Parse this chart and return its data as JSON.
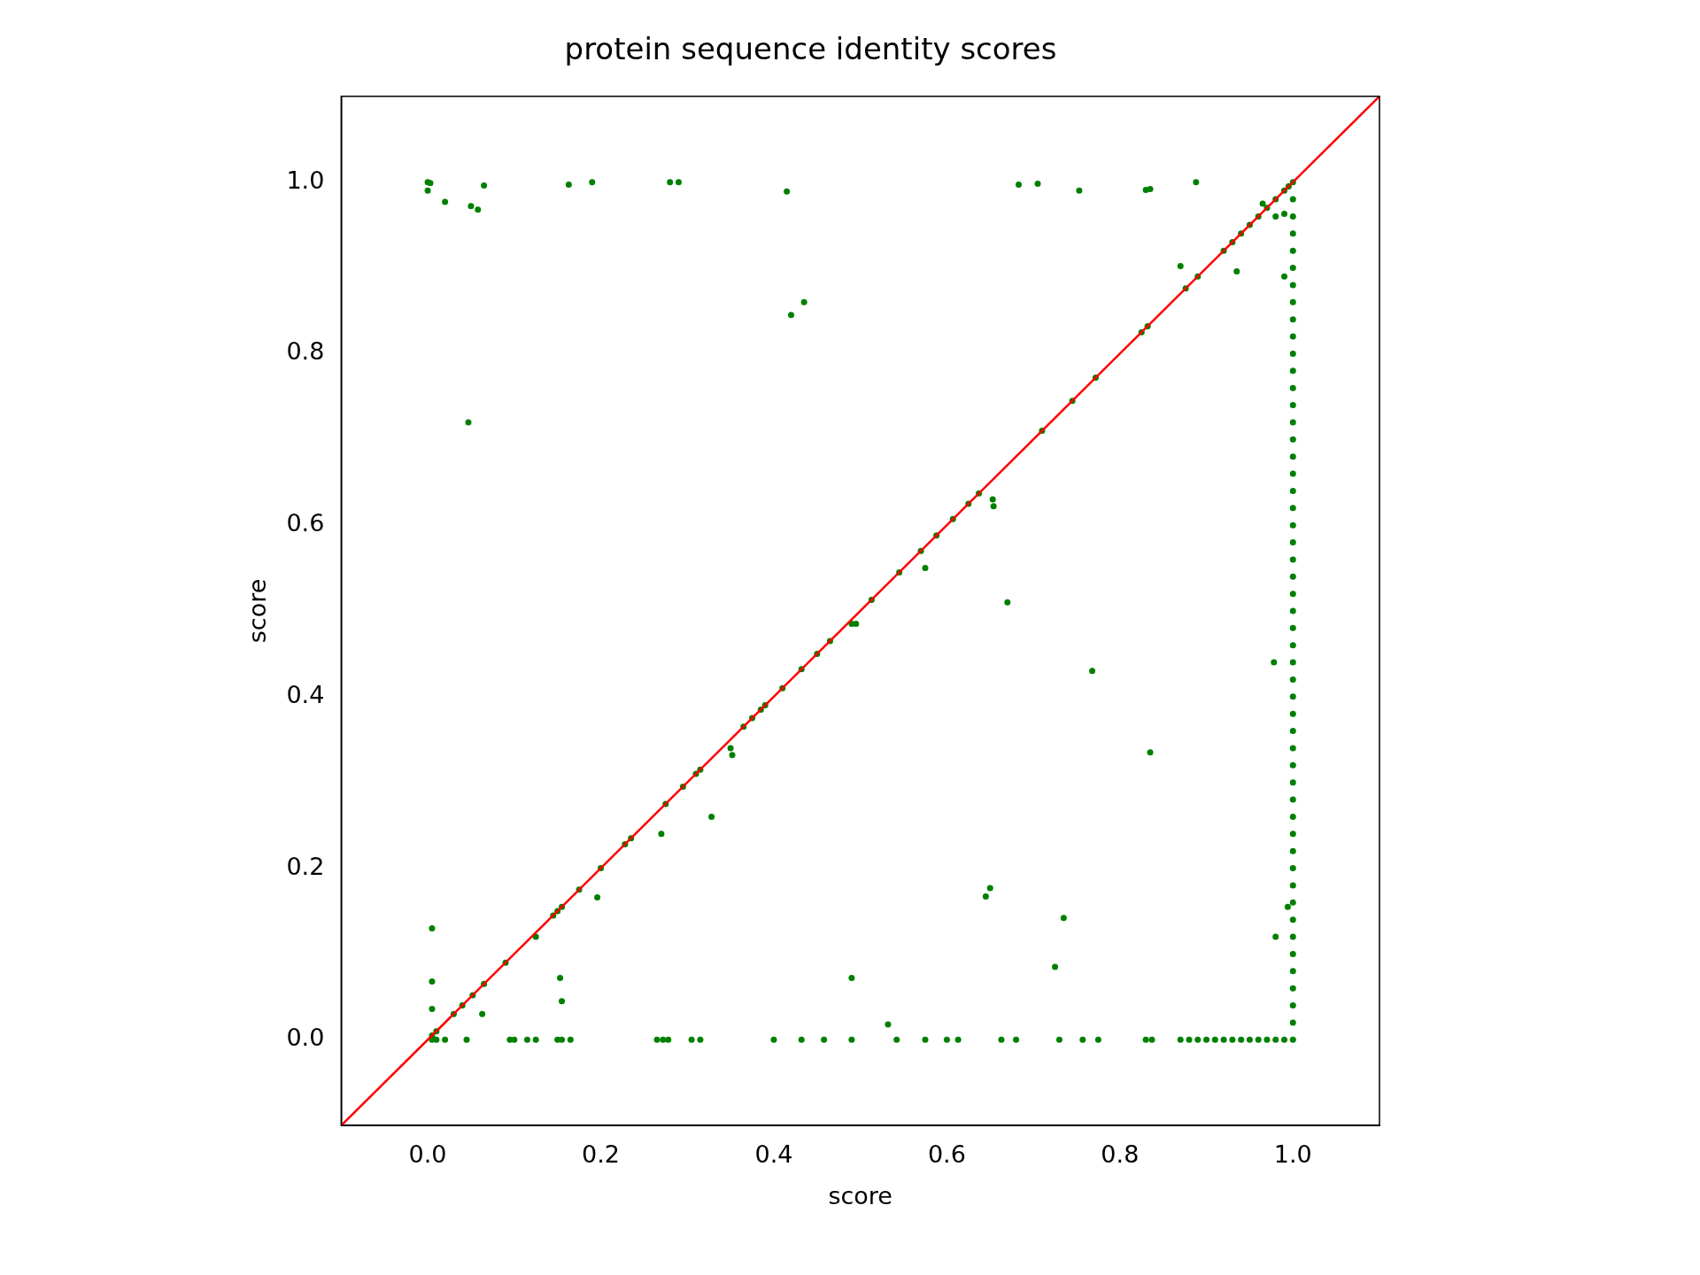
{
  "chart_data": {
    "type": "scatter",
    "title": "protein sequence identity scores",
    "xlabel": "score",
    "ylabel": "score",
    "xlim": [
      -0.1,
      1.1
    ],
    "ylim": [
      -0.1,
      1.1
    ],
    "xticks": [
      {
        "value": 0,
        "label": "0.0"
      },
      {
        "value": 0.2,
        "label": "0.2"
      },
      {
        "value": 0.4,
        "label": "0.4"
      },
      {
        "value": 0.6,
        "label": "0.6"
      },
      {
        "value": 0.8,
        "label": "0.8"
      },
      {
        "value": 1,
        "label": "1.0"
      }
    ],
    "yticks": [
      {
        "value": 0,
        "label": "0.0"
      },
      {
        "value": 0.2,
        "label": "0.2"
      },
      {
        "value": 0.4,
        "label": "0.4"
      },
      {
        "value": 0.6,
        "label": "0.6"
      },
      {
        "value": 0.8,
        "label": "0.8"
      },
      {
        "value": 1,
        "label": "1.0"
      }
    ],
    "grid": false,
    "legend": false,
    "series": [
      {
        "color": "#008000",
        "marker": "circle",
        "x": [
          0,
          0.003,
          0,
          0.02,
          0.05,
          0.058,
          0.065,
          0.163,
          0.19,
          0.28,
          0.29,
          0.415,
          0.683,
          0.705,
          0.753,
          0.83,
          0.835,
          0.888,
          0.87,
          0.935,
          0.42,
          0.435,
          0.047,
          0.653,
          0.654,
          0.67,
          0.575,
          0.768,
          0.835,
          0.978,
          0.328,
          0.27,
          0.196,
          0.65,
          0.645,
          0.735,
          0.725,
          0.98,
          0.994,
          0.49,
          0.532,
          0.153,
          0.155,
          0.005,
          0.005,
          0.005,
          0.063,
          0.99,
          0.98,
          0.99,
          0.965,
          0.005,
          0.01,
          0.03,
          0.04,
          0.052,
          0.065,
          0.09,
          0.125,
          0.145,
          0.15,
          0.155,
          0.175,
          0.2,
          0.228,
          0.235,
          0.275,
          0.295,
          0.31,
          0.315,
          0.35,
          0.352,
          0.365,
          0.375,
          0.385,
          0.39,
          0.41,
          0.432,
          0.45,
          0.465,
          0.49,
          0.495,
          0.513,
          0.545,
          0.57,
          0.588,
          0.607,
          0.625,
          0.637,
          0.71,
          0.745,
          0.772,
          0.825,
          0.832,
          0.876,
          0.89,
          0.92,
          0.93,
          0.94,
          0.95,
          0.96,
          0.97,
          0.98,
          0.99,
          0.995,
          0.005,
          0.01,
          0.02,
          0.045,
          0.095,
          0.1,
          0.115,
          0.125,
          0.15,
          0.155,
          0.165,
          0.265,
          0.272,
          0.278,
          0.305,
          0.315,
          0.4,
          0.432,
          0.458,
          0.49,
          0.542,
          0.575,
          0.6,
          0.613,
          0.663,
          0.68,
          0.73,
          0.757,
          0.775,
          0.83,
          0.837,
          0.87,
          0.88,
          0.89,
          0.9,
          0.91,
          0.92,
          0.93,
          0.94,
          0.95,
          0.96,
          0.97,
          0.98,
          0.99,
          1,
          1,
          1,
          1,
          1,
          1,
          1,
          1,
          1,
          1,
          1,
          1,
          1,
          1,
          1,
          1,
          1,
          1,
          1,
          1,
          1,
          1,
          1,
          1,
          1,
          1,
          1,
          1,
          1,
          1,
          1,
          1,
          1,
          1,
          1,
          1,
          1,
          1,
          1,
          1,
          1,
          1,
          1,
          1,
          1,
          1,
          1,
          1,
          1,
          1,
          1
        ],
        "values": [
          1,
          0.999,
          0.99,
          0.977,
          0.972,
          0.968,
          0.996,
          0.997,
          1,
          1,
          1,
          0.989,
          0.997,
          0.998,
          0.99,
          0.991,
          0.992,
          1,
          0.902,
          0.896,
          0.845,
          0.86,
          0.72,
          0.63,
          0.622,
          0.51,
          0.55,
          0.43,
          0.335,
          0.44,
          0.26,
          0.24,
          0.166,
          0.177,
          0.167,
          0.142,
          0.085,
          0.12,
          0.155,
          0.072,
          0.018,
          0.072,
          0.045,
          0.13,
          0.068,
          0.036,
          0.03,
          0.89,
          0.96,
          0.963,
          0.975,
          0.005,
          0.01,
          0.03,
          0.04,
          0.052,
          0.065,
          0.09,
          0.12,
          0.145,
          0.15,
          0.155,
          0.175,
          0.2,
          0.228,
          0.235,
          0.275,
          0.295,
          0.31,
          0.315,
          0.34,
          0.332,
          0.365,
          0.375,
          0.385,
          0.39,
          0.41,
          0.432,
          0.45,
          0.465,
          0.485,
          0.485,
          0.513,
          0.545,
          0.57,
          0.588,
          0.607,
          0.625,
          0.637,
          0.71,
          0.745,
          0.772,
          0.825,
          0.832,
          0.876,
          0.89,
          0.92,
          0.93,
          0.94,
          0.95,
          0.96,
          0.97,
          0.98,
          0.99,
          0.995,
          0,
          0,
          0,
          0,
          0,
          0,
          0,
          0,
          0,
          0,
          0,
          0,
          0,
          0,
          0,
          0,
          0,
          0,
          0,
          0,
          0,
          0,
          0,
          0,
          0,
          0,
          0,
          0,
          0,
          0,
          0,
          0,
          0,
          0,
          0,
          0,
          0,
          0,
          0,
          0,
          0,
          0,
          0,
          0,
          0,
          0.02,
          0.04,
          0.06,
          0.08,
          0.1,
          0.12,
          0.14,
          0.16,
          0.18,
          0.2,
          0.22,
          0.24,
          0.26,
          0.28,
          0.3,
          0.32,
          0.34,
          0.36,
          0.38,
          0.4,
          0.42,
          0.44,
          0.46,
          0.48,
          0.5,
          0.52,
          0.54,
          0.56,
          0.58,
          0.6,
          0.62,
          0.64,
          0.66,
          0.68,
          0.7,
          0.72,
          0.74,
          0.76,
          0.78,
          0.8,
          0.82,
          0.84,
          0.86,
          0.88,
          0.9,
          0.92,
          0.94,
          0.96,
          0.98,
          1
        ]
      },
      {
        "type": "line",
        "color": "#ff0000",
        "marker": "none",
        "x": [
          -0.1,
          1.1
        ],
        "values": [
          -0.1,
          1.1
        ]
      }
    ]
  }
}
